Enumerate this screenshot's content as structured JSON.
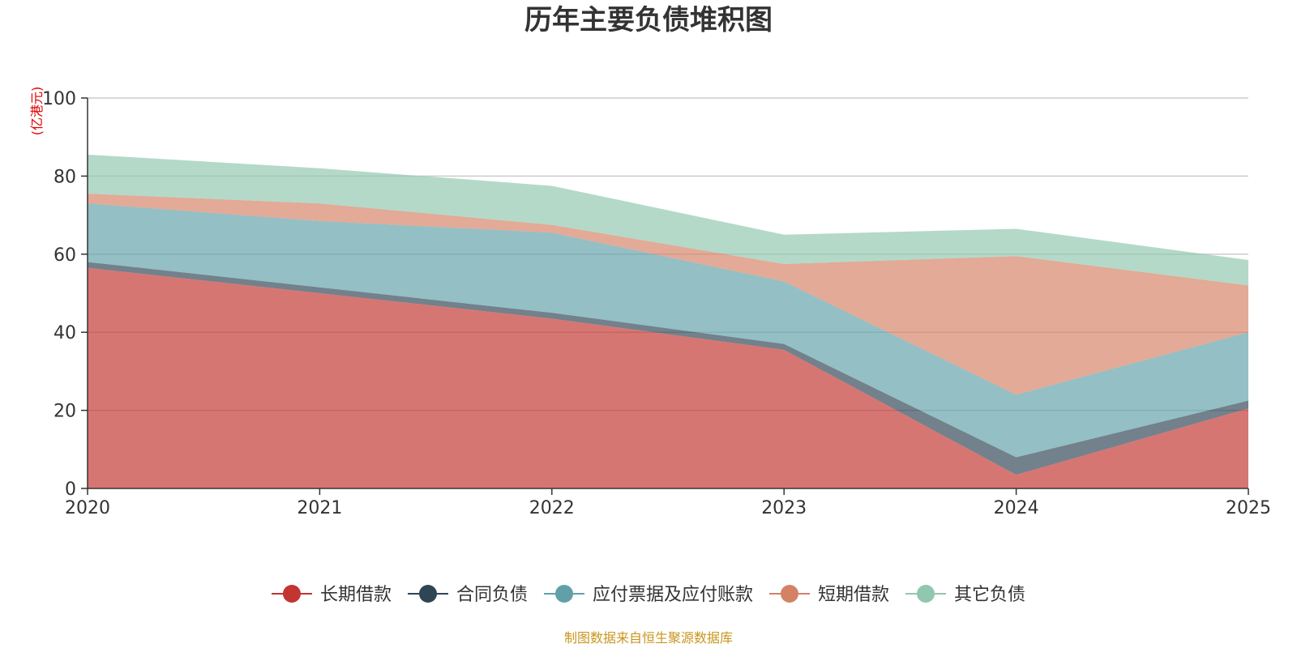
{
  "chart_data": {
    "type": "area",
    "stacked": true,
    "title": "历年主要负债堆积图",
    "ylabel": "(亿港元)",
    "xlabel": "",
    "categories": [
      "2020",
      "2021",
      "2022",
      "2023",
      "2024",
      "2025"
    ],
    "ylim": [
      0,
      100
    ],
    "yticks": [
      0,
      20,
      40,
      60,
      80,
      100
    ],
    "grid": true,
    "series": [
      {
        "name": "长期借款",
        "color": "#c23531",
        "values": [
          56.5,
          50.0,
          43.5,
          35.5,
          3.5,
          20.5
        ]
      },
      {
        "name": "合同负债",
        "color": "#2f4554",
        "values": [
          1.5,
          1.5,
          1.5,
          1.5,
          4.5,
          2.0
        ]
      },
      {
        "name": "应付票据及应付账款",
        "color": "#61a0a8",
        "values": [
          15.0,
          17.0,
          20.5,
          16.0,
          16.0,
          17.5
        ]
      },
      {
        "name": "短期借款",
        "color": "#d48265",
        "values": [
          2.5,
          4.5,
          2.0,
          4.5,
          35.5,
          12.0
        ]
      },
      {
        "name": "其它负债",
        "color": "#91c7ae",
        "values": [
          10.0,
          9.0,
          10.0,
          7.5,
          7.0,
          6.5
        ]
      }
    ],
    "legend_position": "bottom",
    "source": "制图数据来自恒生聚源数据库"
  },
  "colors": {
    "unit_label": "#e00000",
    "source_text": "#c8961e",
    "axis": "#333333",
    "grid": "#cccccc"
  }
}
